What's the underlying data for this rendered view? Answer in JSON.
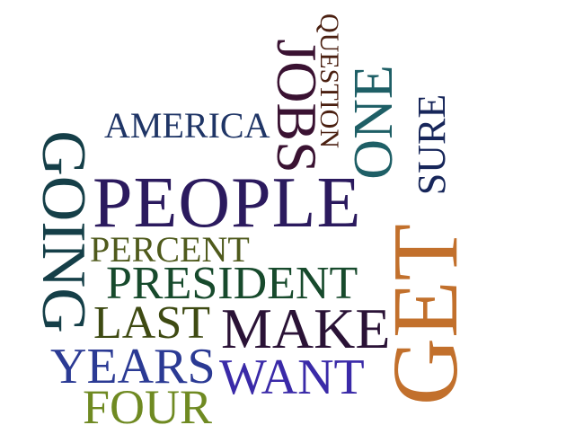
{
  "words": {
    "people": "PEOPLE",
    "america": "AMERICA",
    "percent": "PERCENT",
    "president": "PRESIDENT",
    "last": "LAST",
    "make": "MAKE",
    "years": "YEARS",
    "want": "WANT",
    "four": "FOUR",
    "going": "GOING",
    "jobs": "JOBS",
    "question": "QUESTION",
    "one": "ONE",
    "sure": "SURE",
    "get": "GET"
  },
  "colors": {
    "people": "#2b1a5e",
    "america": "#1f3566",
    "percent": "#4f5a1c",
    "president": "#174a2c",
    "last": "#3e4a12",
    "make": "#2a1236",
    "years": "#2b3a94",
    "want": "#3a2aa8",
    "four": "#6f8a22",
    "going": "#153f48",
    "jobs": "#3a1232",
    "question": "#4a1f10",
    "one": "#1e5f66",
    "sure": "#17265a",
    "get": "#c2702c"
  }
}
